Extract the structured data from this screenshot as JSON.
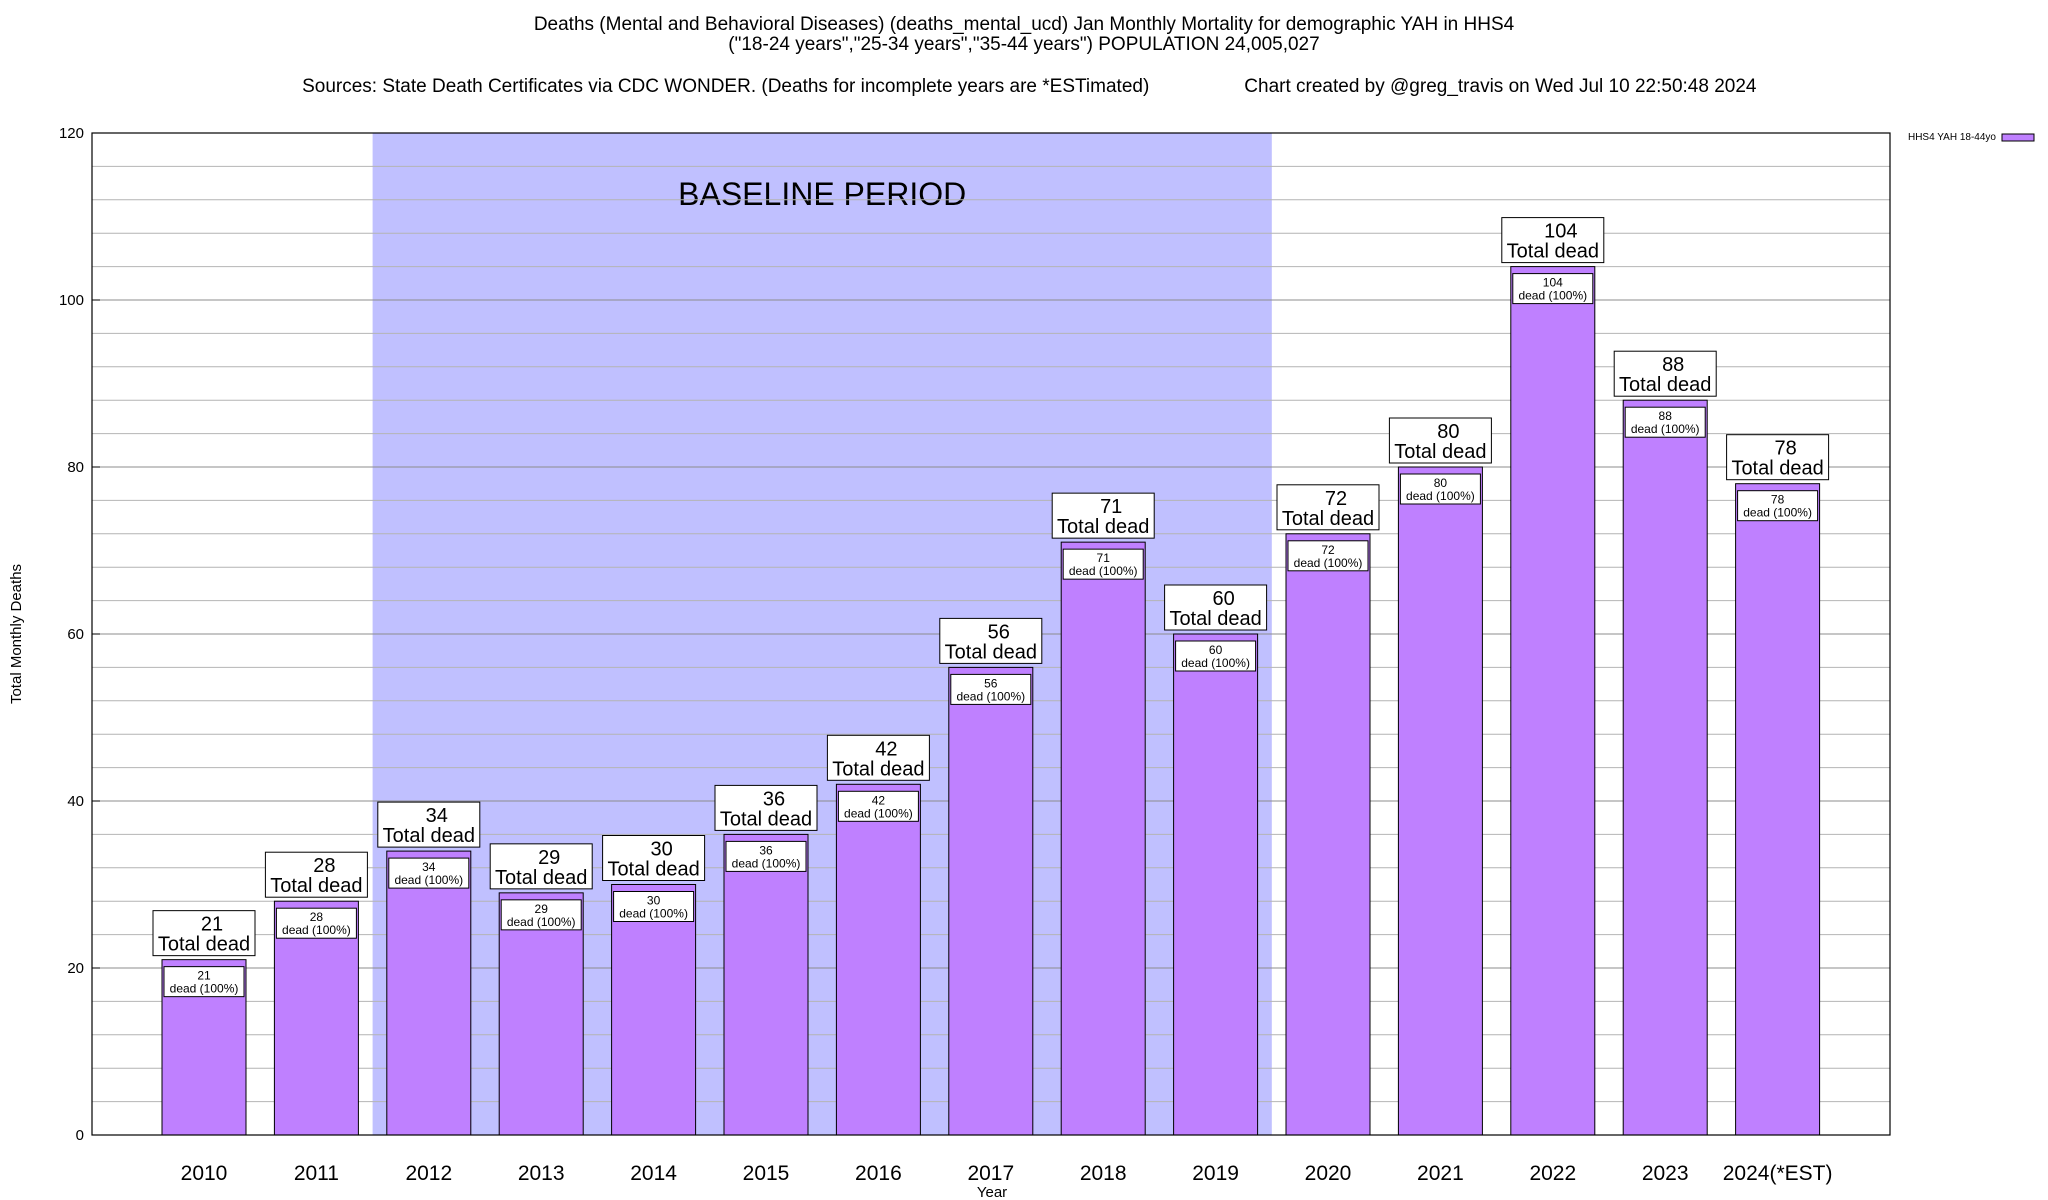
{
  "chart_data": {
    "type": "bar",
    "title": "Deaths (Mental and Behavioral Diseases) (deaths_mental_ucd) Jan Monthly Mortality for demographic YAH in HHS4",
    "subtitle": "(\"18-24 years\",\"25-34 years\",\"35-44 years\") POPULATION 24,005,027",
    "source": "Sources: State Death Certificates via CDC WONDER. (Deaths for incomplete years are *ESTimated)",
    "credit": "Chart created by @greg_travis on Wed Jul 10 22:50:48 2024",
    "xlabel": "Year",
    "ylabel": "Total Monthly Deaths",
    "ylim": [
      0,
      120
    ],
    "yticks": [
      0,
      20,
      40,
      60,
      80,
      100,
      120
    ],
    "minor_step": 4,
    "grid": true,
    "categories": [
      "2010",
      "2011",
      "2012",
      "2013",
      "2014",
      "2015",
      "2016",
      "2017",
      "2018",
      "2019",
      "2020",
      "2021",
      "2022",
      "2023",
      "2024(*EST)"
    ],
    "series": [
      {
        "name": "HHS4 YAH 18-44yo",
        "color": "#bf80ff",
        "values": [
          21,
          28,
          34,
          29,
          30,
          36,
          42,
          56,
          71,
          60,
          72,
          80,
          104,
          88,
          78
        ]
      }
    ],
    "total_label": "Total dead",
    "segment_label": "dead (100%)",
    "baseline": {
      "label": "BASELINE PERIOD",
      "start": "2012",
      "end": "2019",
      "color": "#c0c0ff"
    },
    "legend": {
      "position": "top-right"
    }
  }
}
